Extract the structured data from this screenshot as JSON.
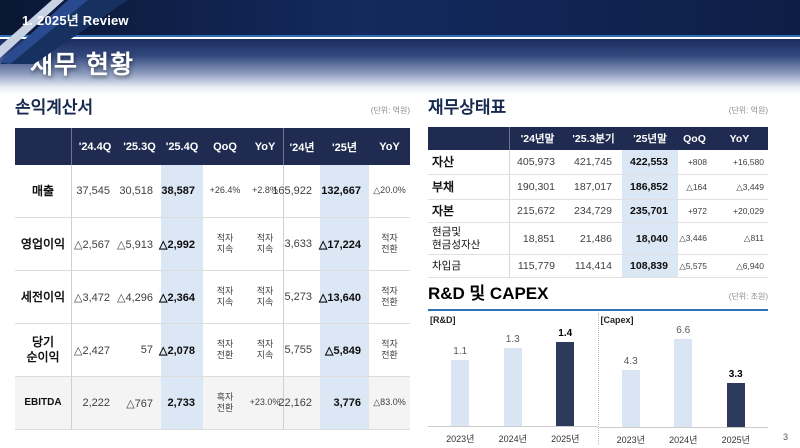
{
  "slide": {
    "breadcrumb": "1. 2025년 Review",
    "title": "재무 현황",
    "page_number": "3"
  },
  "income_statement": {
    "title": "손익계산서",
    "unit": "(단위: 억원)",
    "columns": [
      "'24.4Q",
      "'25.3Q",
      "'25.4Q",
      "QoQ",
      "YoY",
      "'24년",
      "'25년",
      "YoY"
    ],
    "rows": [
      {
        "label": "매출",
        "cells": [
          "37,545",
          "30,518",
          "38,587",
          "+26.4%",
          "+2.8%",
          "165,922",
          "132,667",
          "△20.0%"
        ]
      },
      {
        "label": "영업이익",
        "cells": [
          "△2,567",
          "△5,913",
          "△2,992",
          "적자\n지속",
          "적자\n지속",
          "3,633",
          "△17,224",
          "적자\n전환"
        ]
      },
      {
        "label": "세전이익",
        "cells": [
          "△3,472",
          "△4,296",
          "△2,364",
          "적자\n지속",
          "적자\n지속",
          "5,273",
          "△13,640",
          "적자\n전환"
        ]
      },
      {
        "label": "당기\n순이익",
        "cells": [
          "△2,427",
          "57",
          "△2,078",
          "적자\n전환",
          "적자\n지속",
          "5,755",
          "△5,849",
          "적자\n전환"
        ]
      },
      {
        "label": "EBITDA",
        "shaded": true,
        "cells": [
          "2,222",
          "△767",
          "2,733",
          "흑자\n전환",
          "+23.0%",
          "22,162",
          "3,776",
          "△83.0%"
        ]
      }
    ]
  },
  "balance_sheet": {
    "title": "재무상태표",
    "unit": "(단위: 억원)",
    "columns": [
      "'24년말",
      "'25.3분기",
      "'25년말",
      "QoQ",
      "YoY"
    ],
    "rows": [
      {
        "label": "자산",
        "bold": true,
        "cells": [
          "405,973",
          "421,745",
          "422,553",
          "+808",
          "+16,580"
        ]
      },
      {
        "label": "부채",
        "bold": true,
        "cells": [
          "190,301",
          "187,017",
          "186,852",
          "△164",
          "△3,449"
        ]
      },
      {
        "label": "자본",
        "bold": true,
        "cells": [
          "215,672",
          "234,729",
          "235,701",
          "+972",
          "+20,029"
        ]
      },
      {
        "label": "현금및\n현금성자산",
        "bold": false,
        "cells": [
          "18,851",
          "21,486",
          "18,040",
          "△3,446",
          "△811"
        ]
      },
      {
        "label": "차입금",
        "bold": false,
        "cells": [
          "115,779",
          "114,414",
          "108,839",
          "△5,575",
          "△6,940"
        ]
      }
    ]
  },
  "rnd_capex": {
    "title": "R&D 및 CAPEX",
    "unit": "(단위: 조원)"
  },
  "chart_data": [
    {
      "type": "bar",
      "name": "[R&D]",
      "categories": [
        "2023년",
        "2024년",
        "2025년"
      ],
      "values": [
        1.1,
        1.3,
        1.4
      ],
      "highlight_index": 2,
      "ylabel": "조원",
      "ylim": [
        0,
        1.5
      ],
      "grid": false,
      "legend": "none"
    },
    {
      "type": "bar",
      "name": "[Capex]",
      "categories": [
        "2023년",
        "2024년",
        "2025년"
      ],
      "values": [
        4.3,
        6.6,
        3.3
      ],
      "highlight_index": 2,
      "ylabel": "조원",
      "ylim": [
        0,
        7
      ],
      "grid": false,
      "legend": "none"
    }
  ],
  "colors": {
    "navy_header": "#1f2b50",
    "highlight_col": "#dbe7f4",
    "bar_light": "#d9e5f2",
    "bar_dark": "#2c3a5c",
    "accent_line": "#2e74b5"
  }
}
